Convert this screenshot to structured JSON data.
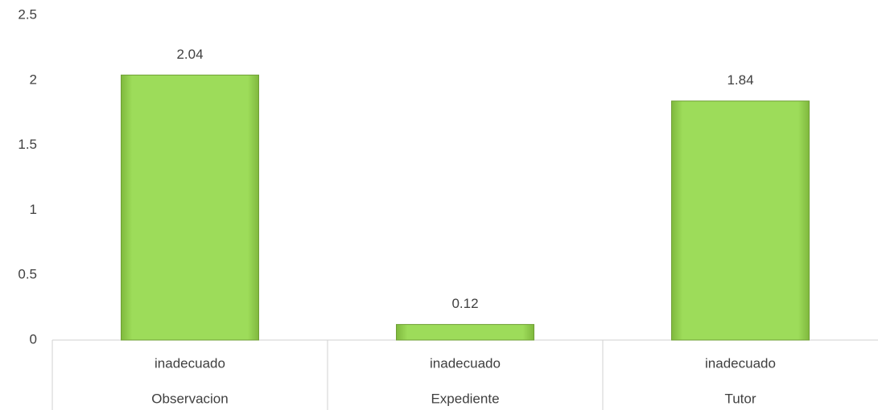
{
  "chart_data": {
    "type": "bar",
    "categories": [
      "inadecuado",
      "inadecuado",
      "inadecuado"
    ],
    "groups": [
      "Observacion",
      "Expediente",
      "Tutor"
    ],
    "values": [
      2.04,
      0.12,
      1.84
    ],
    "color": "#92d050",
    "ylim": [
      0,
      2.5
    ],
    "yticks": [
      0,
      0.5,
      1,
      1.5,
      2,
      2.5
    ],
    "grid": false
  }
}
